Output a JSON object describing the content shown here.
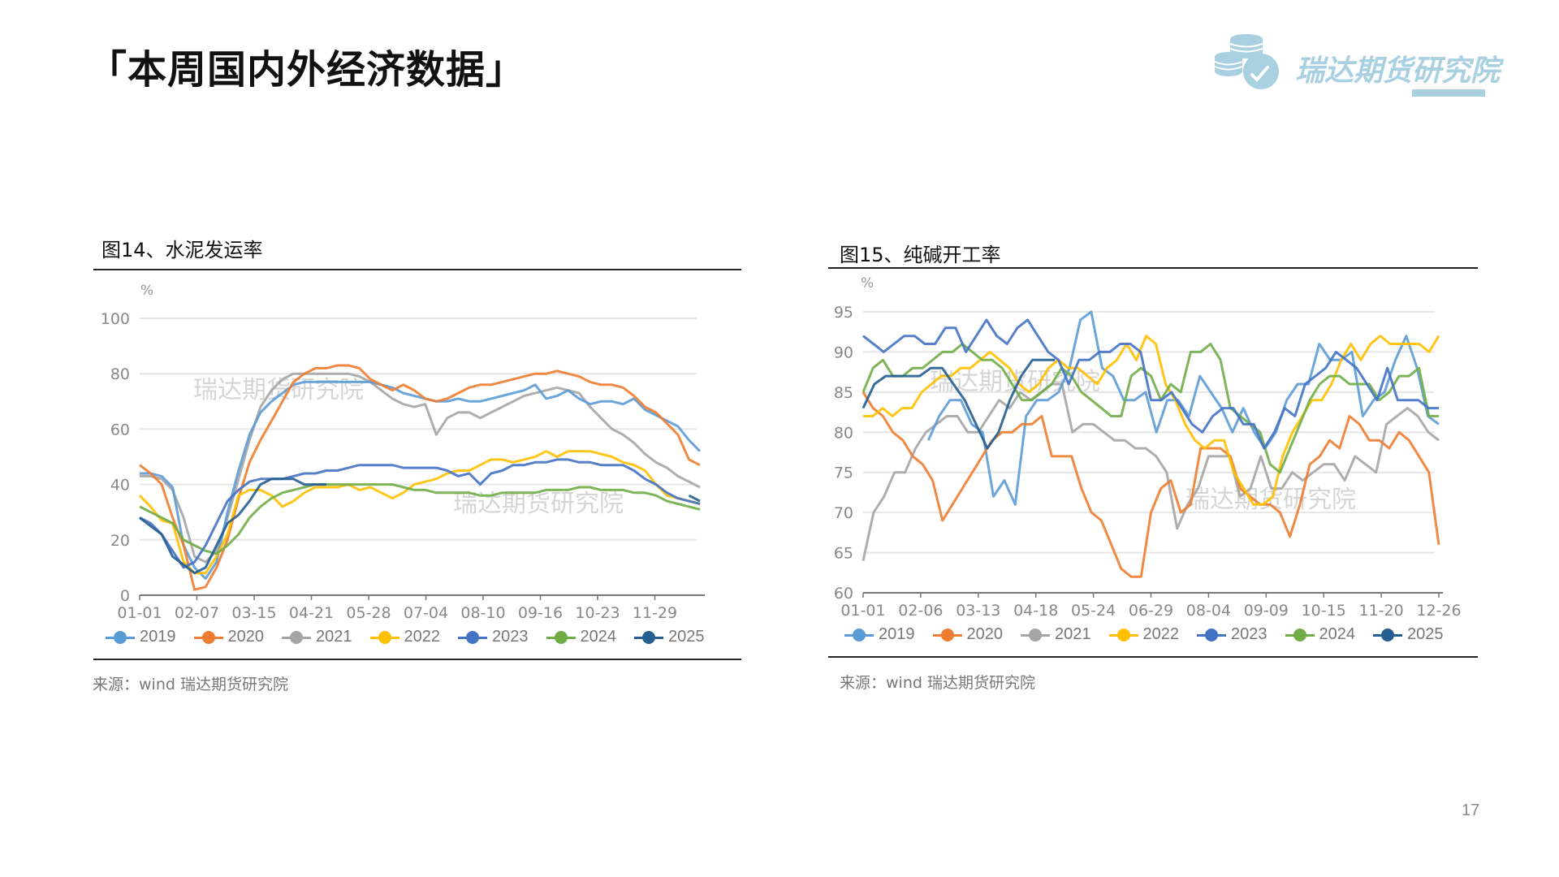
{
  "header": {
    "title": "「本周国内外经济数据」",
    "logo_text": "瑞达期货研究院"
  },
  "page_number": "17",
  "colors": {
    "2019": "#5b9bd5",
    "2020": "#ed7d31",
    "2021": "#a5a5a5",
    "2022": "#ffc000",
    "2023": "#4472c4",
    "2024": "#70ad47",
    "2025": "#255e91",
    "logo": "#a9d0e1"
  },
  "chart_data": [
    {
      "type": "line",
      "title": "图14、水泥发运率",
      "unit_label": "%",
      "ylim": [
        0,
        100
      ],
      "yticks": [
        "0",
        "20",
        "40",
        "60",
        "80",
        "100"
      ],
      "xticks": [
        "01-01",
        "02-07",
        "03-15",
        "04-21",
        "05-28",
        "07-04",
        "08-10",
        "09-16",
        "10-23",
        "11-29"
      ],
      "watermark": "瑞达期货研究院",
      "source": "来源：wind   瑞达期货研究院",
      "legend": [
        "2019",
        "2020",
        "2021",
        "2022",
        "2023",
        "2024",
        "2025"
      ],
      "series": [
        {
          "name": "2019",
          "values": [
            44,
            44,
            43,
            39,
            18,
            10,
            6,
            12,
            30,
            45,
            58,
            66,
            70,
            73,
            76,
            77,
            77,
            77,
            77,
            77,
            77,
            77,
            76,
            75,
            73,
            72,
            71,
            70,
            70,
            71,
            70,
            70,
            71,
            72,
            73,
            74,
            76,
            71,
            72,
            74,
            71,
            69,
            70,
            70,
            69,
            71,
            67,
            65,
            63,
            61,
            56,
            52
          ]
        },
        {
          "name": "2020",
          "values": [
            47,
            44,
            40,
            28,
            18,
            2,
            3,
            10,
            20,
            35,
            48,
            56,
            63,
            70,
            77,
            80,
            82,
            82,
            83,
            83,
            82,
            78,
            76,
            74,
            76,
            74,
            71,
            70,
            71,
            73,
            75,
            76,
            76,
            77,
            78,
            79,
            80,
            80,
            81,
            80,
            79,
            77,
            76,
            76,
            75,
            72,
            68,
            66,
            62,
            58,
            49,
            47
          ]
        },
        {
          "name": "2021",
          "values": [
            43,
            43,
            42,
            38,
            28,
            14,
            12,
            16,
            28,
            42,
            56,
            68,
            74,
            78,
            80,
            80,
            80,
            80,
            80,
            80,
            79,
            77,
            74,
            71,
            69,
            68,
            69,
            58,
            64,
            66,
            66,
            64,
            66,
            68,
            70,
            72,
            73,
            74,
            75,
            74,
            73,
            68,
            64,
            60,
            58,
            55,
            51,
            48,
            46,
            43,
            41,
            39
          ]
        },
        {
          "name": "2022",
          "values": [
            36,
            32,
            27,
            26,
            12,
            8,
            8,
            14,
            22,
            36,
            38,
            38,
            36,
            32,
            34,
            37,
            39,
            39,
            39,
            40,
            38,
            39,
            37,
            35,
            37,
            40,
            41,
            42,
            44,
            45,
            45,
            47,
            49,
            49,
            48,
            49,
            50,
            52,
            50,
            52,
            52,
            52,
            51,
            50,
            48,
            47,
            45,
            40,
            36,
            35,
            34,
            33
          ]
        },
        {
          "name": "2023",
          "values": [
            28,
            26,
            22,
            16,
            10,
            12,
            18,
            26,
            34,
            38,
            41,
            42,
            42,
            42,
            43,
            44,
            44,
            45,
            45,
            46,
            47,
            47,
            47,
            47,
            46,
            46,
            46,
            46,
            45,
            43,
            44,
            40,
            44,
            45,
            47,
            47,
            48,
            48,
            49,
            49,
            48,
            48,
            47,
            47,
            47,
            45,
            42,
            40,
            37,
            35,
            34,
            33
          ]
        },
        {
          "name": "2024",
          "values": [
            32,
            30,
            28,
            26,
            20,
            18,
            16,
            15,
            18,
            22,
            28,
            32,
            35,
            37,
            38,
            39,
            40,
            40,
            40,
            40,
            40,
            40,
            40,
            40,
            39,
            38,
            38,
            37,
            37,
            37,
            37,
            36,
            36,
            37,
            37,
            37,
            37,
            38,
            38,
            38,
            39,
            39,
            38,
            38,
            38,
            37,
            37,
            36,
            34,
            33,
            32,
            31
          ]
        },
        {
          "name": "2025",
          "values": [
            28,
            25,
            22,
            14,
            11,
            8,
            10,
            18,
            26,
            29,
            34,
            40,
            42,
            42,
            42,
            40,
            40,
            40,
            null,
            null,
            null,
            null,
            null,
            null,
            null,
            null,
            null,
            null,
            null,
            null,
            null,
            null,
            null,
            null,
            null,
            null,
            null,
            null,
            null,
            null,
            null,
            null,
            null,
            null,
            null,
            null,
            null,
            null,
            null,
            null,
            36,
            34
          ]
        }
      ]
    },
    {
      "type": "line",
      "title": "图15、纯碱开工率",
      "unit_label": "%",
      "ylim": [
        60,
        95
      ],
      "yticks": [
        "60",
        "65",
        "70",
        "75",
        "80",
        "85",
        "90",
        "95"
      ],
      "xticks": [
        "01-01",
        "02-06",
        "03-13",
        "04-18",
        "05-24",
        "06-29",
        "08-04",
        "09-09",
        "10-15",
        "11-20",
        "12-26"
      ],
      "watermark": "瑞达期货研究院",
      "source": "来源：wind   瑞达期货研究院",
      "legend": [
        "2019",
        "2020",
        "2021",
        "2022",
        "2023",
        "2024",
        "2025"
      ],
      "series": [
        {
          "name": "2019",
          "values": [
            null,
            null,
            null,
            null,
            null,
            null,
            79,
            82,
            84,
            84,
            81,
            80,
            72,
            74,
            71,
            82,
            84,
            84,
            85,
            88,
            94,
            95,
            88,
            87,
            84,
            84,
            85,
            80,
            84,
            84,
            82,
            87,
            85,
            83,
            80,
            83,
            80,
            78,
            80,
            84,
            86,
            86,
            91,
            89,
            89,
            90,
            82,
            84,
            85,
            89,
            92,
            88,
            82,
            81
          ]
        },
        {
          "name": "2020",
          "values": [
            85,
            83,
            82,
            80,
            79,
            77,
            76,
            74,
            69,
            71,
            73,
            75,
            77,
            79,
            80,
            80,
            81,
            81,
            82,
            77,
            77,
            77,
            73,
            70,
            69,
            66,
            63,
            62,
            62,
            70,
            73,
            74,
            70,
            71,
            78,
            78,
            78,
            77,
            73,
            72,
            71,
            71,
            70,
            67,
            71,
            76,
            77,
            79,
            78,
            82,
            81,
            79,
            79,
            78,
            80,
            79,
            77,
            75,
            66
          ]
        },
        {
          "name": "2021",
          "values": [
            64,
            70,
            72,
            75,
            75,
            78,
            80,
            81,
            82,
            82,
            80,
            80,
            82,
            84,
            83,
            85,
            84,
            85,
            86,
            86,
            80,
            81,
            81,
            80,
            79,
            79,
            78,
            78,
            77,
            75,
            68,
            71,
            73,
            77,
            77,
            77,
            72,
            73,
            77,
            73,
            73,
            75,
            74,
            75,
            76,
            76,
            74,
            77,
            76,
            75,
            81,
            82,
            83,
            82,
            80,
            79
          ]
        },
        {
          "name": "2022",
          "values": [
            82,
            82,
            83,
            82,
            83,
            83,
            85,
            86,
            87,
            87,
            88,
            88,
            89,
            90,
            89,
            88,
            86,
            85,
            86,
            88,
            89,
            88,
            88,
            87,
            86,
            88,
            89,
            91,
            89,
            92,
            91,
            86,
            84,
            81,
            79,
            78,
            79,
            79,
            75,
            73,
            71,
            71,
            72,
            77,
            80,
            82,
            84,
            84,
            86,
            89,
            91,
            89,
            91,
            92,
            91,
            91,
            91,
            91,
            90,
            92
          ]
        },
        {
          "name": "2023",
          "values": [
            92,
            91,
            90,
            91,
            92,
            92,
            91,
            91,
            93,
            93,
            90,
            92,
            94,
            92,
            91,
            93,
            94,
            92,
            90,
            89,
            86,
            89,
            89,
            90,
            90,
            91,
            91,
            90,
            84,
            84,
            85,
            83,
            81,
            80,
            82,
            83,
            83,
            81,
            81,
            78,
            80,
            83,
            82,
            86,
            87,
            88,
            90,
            89,
            88,
            86,
            84,
            88,
            84,
            84,
            84,
            83,
            83
          ]
        },
        {
          "name": "2024",
          "values": [
            85,
            88,
            89,
            87,
            87,
            88,
            88,
            89,
            90,
            90,
            91,
            90,
            89,
            89,
            88,
            86,
            84,
            84,
            85,
            86,
            88,
            87,
            85,
            84,
            83,
            82,
            82,
            87,
            88,
            87,
            84,
            86,
            85,
            90,
            90,
            91,
            89,
            83,
            82,
            81,
            80,
            76,
            75,
            78,
            81,
            84,
            86,
            87,
            87,
            86,
            86,
            86,
            84,
            85,
            87,
            87,
            88,
            82,
            82
          ]
        },
        {
          "name": "2025",
          "values": [
            83,
            86,
            87,
            87,
            87,
            87,
            88,
            88,
            86,
            84,
            81,
            78,
            80,
            84,
            87,
            89,
            89,
            89,
            null,
            null,
            null,
            null,
            null,
            null,
            null,
            null,
            null,
            null,
            null,
            null,
            null,
            null,
            null,
            null,
            null,
            null,
            null,
            null,
            null,
            null,
            null,
            null,
            null,
            null,
            null,
            null,
            null,
            null,
            null,
            null,
            null,
            null
          ]
        }
      ]
    }
  ]
}
